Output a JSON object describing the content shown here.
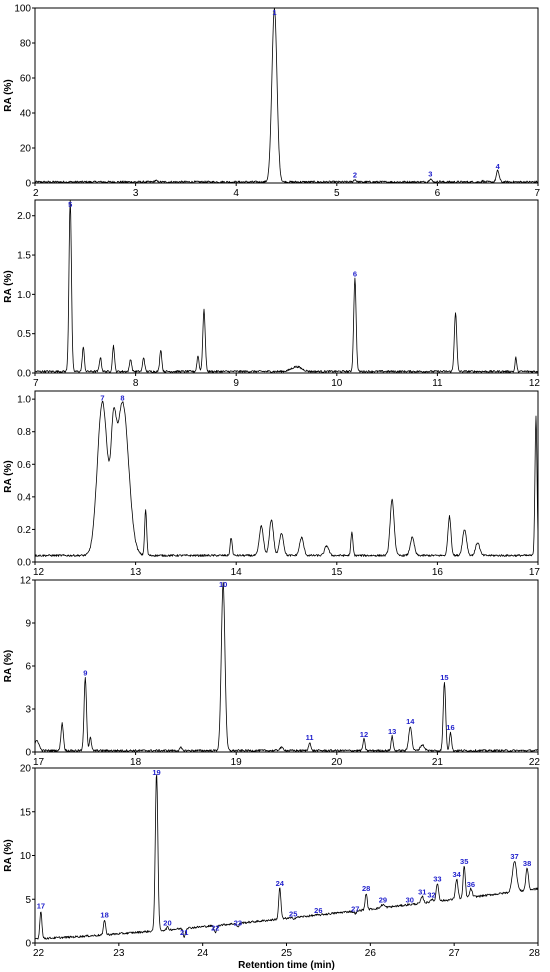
{
  "chart_data": [
    {
      "type": "line",
      "panel": 1,
      "xlim": [
        2,
        7
      ],
      "ylim": [
        0,
        100
      ],
      "xticks": [
        "2",
        "3",
        "4",
        "5",
        "6",
        "7"
      ],
      "yticks": [
        "0",
        "20",
        "40",
        "60",
        "80",
        "100"
      ],
      "ylabel": "RA (%)",
      "xlabel": "",
      "baseline": 0.6,
      "peaks": [
        {
          "label": "1",
          "x": 4.38,
          "y": 100,
          "w": 0.025
        },
        {
          "label": "2",
          "x": 5.18,
          "y": 2,
          "w": 0.012
        },
        {
          "label": "3",
          "x": 5.93,
          "y": 2.5,
          "w": 0.012
        },
        {
          "label": "4",
          "x": 6.6,
          "y": 7,
          "w": 0.014
        },
        {
          "label": "",
          "x": 3.2,
          "y": 1.5,
          "w": 0.01
        },
        {
          "label": "",
          "x": 6.02,
          "y": 1,
          "w": 0.01
        },
        {
          "label": "",
          "x": 6.45,
          "y": 1.2,
          "w": 0.01
        }
      ]
    },
    {
      "type": "line",
      "panel": 2,
      "xlim": [
        7,
        12
      ],
      "ylim": [
        0,
        2.2
      ],
      "xticks": [
        "7",
        "8",
        "9",
        "10",
        "11",
        "12"
      ],
      "yticks": [
        "0.0",
        "0.5",
        "1.0",
        "1.5",
        "2.0"
      ],
      "ylabel": "RA (%)",
      "xlabel": "",
      "baseline": 0.02,
      "peaks": [
        {
          "label": "5",
          "x": 7.35,
          "y": 2.2,
          "w": 0.012
        },
        {
          "label": "6",
          "x": 10.18,
          "y": 1.2,
          "w": 0.012
        },
        {
          "label": "",
          "x": 7.48,
          "y": 0.33,
          "w": 0.01
        },
        {
          "label": "",
          "x": 7.65,
          "y": 0.2,
          "w": 0.01
        },
        {
          "label": "",
          "x": 7.78,
          "y": 0.35,
          "w": 0.01
        },
        {
          "label": "",
          "x": 7.95,
          "y": 0.18,
          "w": 0.01
        },
        {
          "label": "",
          "x": 8.08,
          "y": 0.2,
          "w": 0.01
        },
        {
          "label": "",
          "x": 8.25,
          "y": 0.3,
          "w": 0.01
        },
        {
          "label": "",
          "x": 8.62,
          "y": 0.22,
          "w": 0.01
        },
        {
          "label": "",
          "x": 8.68,
          "y": 0.8,
          "w": 0.012
        },
        {
          "label": "",
          "x": 9.6,
          "y": 0.08,
          "w": 0.05
        },
        {
          "label": "",
          "x": 11.18,
          "y": 0.77,
          "w": 0.012
        },
        {
          "label": "",
          "x": 11.78,
          "y": 0.2,
          "w": 0.008
        }
      ]
    },
    {
      "type": "line",
      "panel": 3,
      "xlim": [
        12,
        17
      ],
      "ylim": [
        0,
        1.05
      ],
      "xticks": [
        "12",
        "13",
        "14",
        "15",
        "16",
        "17"
      ],
      "yticks": [
        "0.0",
        "0.2",
        "0.4",
        "0.6",
        "0.8",
        "1.0"
      ],
      "ylabel": "RA (%)",
      "xlabel": "",
      "baseline": 0.04,
      "peaks": [
        {
          "label": "7",
          "x": 12.67,
          "y": 0.98,
          "w": 0.05
        },
        {
          "label": "8",
          "x": 12.87,
          "y": 0.98,
          "w": 0.06
        },
        {
          "label": "",
          "x": 12.78,
          "y": 0.55,
          "w": 0.025
        },
        {
          "label": "",
          "x": 13.1,
          "y": 0.32,
          "w": 0.01
        },
        {
          "label": "",
          "x": 13.95,
          "y": 0.15,
          "w": 0.01
        },
        {
          "label": "",
          "x": 14.25,
          "y": 0.22,
          "w": 0.02
        },
        {
          "label": "",
          "x": 14.35,
          "y": 0.26,
          "w": 0.02
        },
        {
          "label": "",
          "x": 14.45,
          "y": 0.18,
          "w": 0.02
        },
        {
          "label": "",
          "x": 14.65,
          "y": 0.15,
          "w": 0.02
        },
        {
          "label": "",
          "x": 14.9,
          "y": 0.1,
          "w": 0.02
        },
        {
          "label": "",
          "x": 15.15,
          "y": 0.18,
          "w": 0.01
        },
        {
          "label": "",
          "x": 15.55,
          "y": 0.38,
          "w": 0.02
        },
        {
          "label": "",
          "x": 15.75,
          "y": 0.15,
          "w": 0.02
        },
        {
          "label": "",
          "x": 16.12,
          "y": 0.28,
          "w": 0.015
        },
        {
          "label": "",
          "x": 16.27,
          "y": 0.2,
          "w": 0.02
        },
        {
          "label": "",
          "x": 16.4,
          "y": 0.12,
          "w": 0.02
        },
        {
          "label": "",
          "x": 16.98,
          "y": 0.9,
          "w": 0.01
        }
      ]
    },
    {
      "type": "line",
      "panel": 4,
      "xlim": [
        17,
        22
      ],
      "ylim": [
        0,
        12
      ],
      "xticks": [
        "17",
        "18",
        "19",
        "20",
        "21",
        "22"
      ],
      "yticks": [
        "0",
        "3",
        "6",
        "9",
        "12"
      ],
      "ylabel": "RA (%)",
      "xlabel": "",
      "baseline": 0.1,
      "peaks": [
        {
          "label": "9",
          "x": 17.5,
          "y": 5.2,
          "w": 0.012
        },
        {
          "label": "10",
          "x": 18.87,
          "y": 11.8,
          "w": 0.018
        },
        {
          "label": "11",
          "x": 19.73,
          "y": 0.7,
          "w": 0.01
        },
        {
          "label": "12",
          "x": 20.27,
          "y": 0.9,
          "w": 0.01
        },
        {
          "label": "13",
          "x": 20.55,
          "y": 1.1,
          "w": 0.01
        },
        {
          "label": "14",
          "x": 20.73,
          "y": 1.8,
          "w": 0.015
        },
        {
          "label": "15",
          "x": 21.07,
          "y": 4.9,
          "w": 0.012
        },
        {
          "label": "16",
          "x": 21.13,
          "y": 1.4,
          "w": 0.01
        },
        {
          "label": "",
          "x": 17.02,
          "y": 0.8,
          "w": 0.02
        },
        {
          "label": "",
          "x": 17.27,
          "y": 2,
          "w": 0.012
        },
        {
          "label": "",
          "x": 17.55,
          "y": 1,
          "w": 0.01
        },
        {
          "label": "",
          "x": 18.45,
          "y": 0.3,
          "w": 0.01
        },
        {
          "label": "",
          "x": 19.45,
          "y": 0.3,
          "w": 0.02
        },
        {
          "label": "",
          "x": 20.85,
          "y": 0.5,
          "w": 0.02
        }
      ]
    },
    {
      "type": "line",
      "panel": 5,
      "xlim": [
        22,
        28
      ],
      "ylim": [
        0,
        20
      ],
      "xticks": [
        "22",
        "23",
        "24",
        "25",
        "26",
        "27",
        "28"
      ],
      "yticks": [
        "0",
        "5",
        "10",
        "15",
        "20"
      ],
      "ylabel": "RA (%)",
      "xlabel": "Retention time (min)",
      "baseline_start": 0.5,
      "baseline_end": 6.2,
      "peaks": [
        {
          "label": "17",
          "x": 22.07,
          "y": 3.7,
          "w": 0.012
        },
        {
          "label": "18",
          "x": 22.83,
          "y": 2.7,
          "w": 0.012
        },
        {
          "label": "19",
          "x": 23.45,
          "y": 19.5,
          "w": 0.015
        },
        {
          "label": "20",
          "x": 23.58,
          "y": 1.8,
          "w": 0.012
        },
        {
          "label": "21",
          "x": 23.78,
          "y": 0.7,
          "w": 0.012
        },
        {
          "label": "22",
          "x": 24.15,
          "y": 1.2,
          "w": 0.015
        },
        {
          "label": "23",
          "x": 24.42,
          "y": 1.8,
          "w": 0.012
        },
        {
          "label": "24",
          "x": 24.92,
          "y": 6.3,
          "w": 0.013
        },
        {
          "label": "25",
          "x": 25.08,
          "y": 2.8,
          "w": 0.02
        },
        {
          "label": "26",
          "x": 25.38,
          "y": 3.2,
          "w": 0.02
        },
        {
          "label": "27",
          "x": 25.82,
          "y": 3.4,
          "w": 0.02
        },
        {
          "label": "28",
          "x": 25.95,
          "y": 5.7,
          "w": 0.012
        },
        {
          "label": "29",
          "x": 26.15,
          "y": 4.4,
          "w": 0.02
        },
        {
          "label": "30",
          "x": 26.47,
          "y": 4.4,
          "w": 0.02
        },
        {
          "label": "31",
          "x": 26.62,
          "y": 5.3,
          "w": 0.015
        },
        {
          "label": "32",
          "x": 26.73,
          "y": 5,
          "w": 0.015
        },
        {
          "label": "33",
          "x": 26.8,
          "y": 6.8,
          "w": 0.015
        },
        {
          "label": "34",
          "x": 27.03,
          "y": 7.3,
          "w": 0.015
        },
        {
          "label": "35",
          "x": 27.12,
          "y": 8.8,
          "w": 0.013
        },
        {
          "label": "36",
          "x": 27.2,
          "y": 6.2,
          "w": 0.015
        },
        {
          "label": "37",
          "x": 27.72,
          "y": 9.4,
          "w": 0.025
        },
        {
          "label": "38",
          "x": 27.87,
          "y": 8.6,
          "w": 0.015
        }
      ]
    }
  ],
  "colors": {
    "trace": "#000000",
    "peak_label": "#1f1fcc",
    "frame": "#000000"
  }
}
